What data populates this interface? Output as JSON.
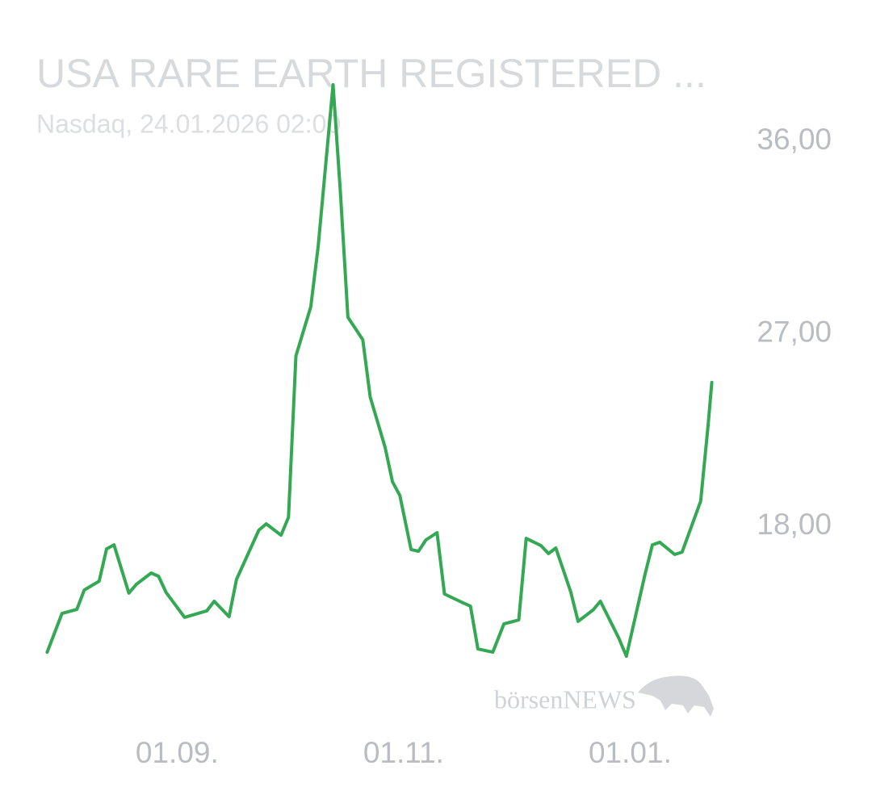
{
  "chart_data": {
    "type": "line",
    "title": "USA RARE EARTH REGISTERED ...",
    "subtitle": "Nasdaq, 24.01.2026 02:00",
    "watermark": "börsenNEWS",
    "color": "#34a853",
    "grid": false,
    "x": [
      "28.07.",
      "01.08.",
      "05.08.",
      "07.08.",
      "11.08.",
      "13.08.",
      "15.08.",
      "19.08.",
      "21.08.",
      "25.08.",
      "27.08.",
      "29.08.",
      "03.09.",
      "09.09.",
      "11.09.",
      "15.09.",
      "17.09.",
      "23.09.",
      "25.09.",
      "29.09.",
      "01.10.",
      "03.10.",
      "07.10.",
      "09.10.",
      "13.10.",
      "15.10.",
      "17.10.",
      "21.10.",
      "23.10.",
      "27.10.",
      "29.10.",
      "31.10.",
      "03.11.",
      "05.11.",
      "07.11.",
      "10.11.",
      "12.11.",
      "17.11.",
      "19.11.",
      "21.11.",
      "25.11.",
      "28.11.",
      "02.12.",
      "04.12.",
      "08.12.",
      "10.12.",
      "12.12.",
      "16.12.",
      "18.12.",
      "22.12.",
      "24.12.",
      "29.12.",
      "31.12.",
      "05.01.",
      "07.01.",
      "09.01.",
      "13.01.",
      "15.01.",
      "20.01.",
      "22.01.",
      "23.01."
    ],
    "values": [
      12.11,
      13.92,
      14.11,
      15.02,
      15.43,
      16.94,
      17.13,
      14.87,
      15.28,
      15.81,
      15.66,
      14.91,
      13.74,
      14.04,
      14.49,
      13.77,
      15.51,
      17.81,
      18.11,
      17.58,
      18.42,
      25.96,
      28.26,
      31.09,
      38.64,
      33.55,
      27.77,
      26.72,
      24.04,
      21.7,
      20.08,
      19.43,
      16.91,
      16.83,
      17.36,
      17.7,
      14.83,
      14.42,
      14.26,
      12.26,
      12.11,
      13.43,
      13.62,
      17.43,
      17.09,
      16.72,
      16.98,
      14.94,
      13.55,
      14.08,
      14.49,
      12.75,
      11.92,
      15.74,
      17.13,
      17.25,
      16.68,
      16.79,
      19.17,
      22.72,
      24.72
    ],
    "xlim": [
      "24.07.",
      "27.01."
    ],
    "xticks": [
      "01.09.",
      "01.11.",
      "01.01."
    ],
    "ylim": [
      10,
      39.6
    ],
    "yticks": [
      {
        "value": 18,
        "label": "18,00"
      },
      {
        "value": 27,
        "label": "27,00"
      },
      {
        "value": 36,
        "label": "36,00"
      }
    ]
  }
}
